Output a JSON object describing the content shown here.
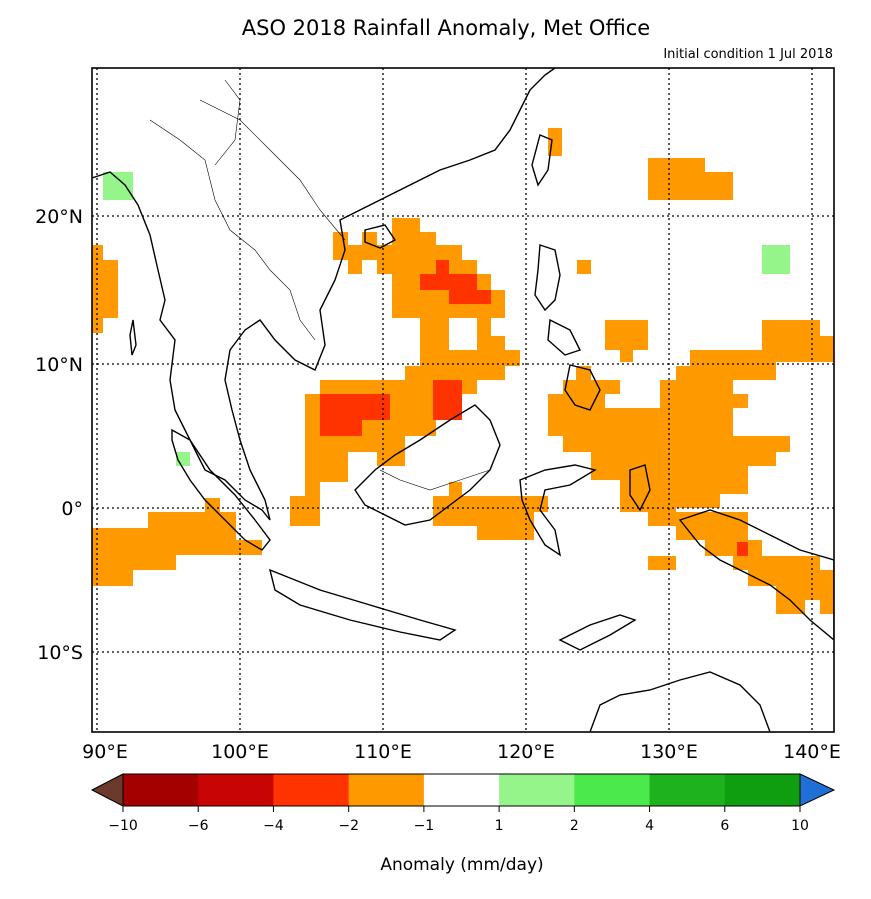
{
  "title": "ASO 2018 Rainfall Anomaly, Met Office",
  "subtitle": "Initial condition 1 Jul 2018",
  "lon_ticks": [
    {
      "lon": 90,
      "label": "90°E"
    },
    {
      "lon": 100,
      "label": "100°E"
    },
    {
      "lon": 110,
      "label": "110°E"
    },
    {
      "lon": 120,
      "label": "120°E"
    },
    {
      "lon": 130,
      "label": "130°E"
    },
    {
      "lon": 140,
      "label": "140°E"
    }
  ],
  "lat_ticks": [
    {
      "lat": 20,
      "label": "20°N"
    },
    {
      "lat": 10,
      "label": "10°N"
    },
    {
      "lat": 0,
      "label": "0°"
    },
    {
      "lat": -10,
      "label": "10°S"
    }
  ],
  "extent": {
    "lon_min": 89.7,
    "lon_max": 141.5,
    "lat_min": -15.5,
    "lat_max": 30.2
  },
  "colorbar": {
    "label": "Anomaly (mm/day)",
    "tick_labels": [
      "−10",
      "−6",
      "−4",
      "−2",
      "−1",
      "1",
      "2",
      "4",
      "6",
      "10"
    ],
    "bins": [
      {
        "range": "-10 to -6",
        "color": "#a50000"
      },
      {
        "range": "-6 to -4",
        "color": "#c80404"
      },
      {
        "range": "-4 to -2",
        "color": "#ff3300"
      },
      {
        "range": "-2 to -1",
        "color": "#ff9900"
      },
      {
        "range": "-1 to 1",
        "color": "#ffffff"
      },
      {
        "range": "1 to 2",
        "color": "#96f58a"
      },
      {
        "range": "2 to 4",
        "color": "#4be94b"
      },
      {
        "range": "4 to 6",
        "color": "#1eb31e"
      },
      {
        "range": "6 to 10",
        "color": "#0f9e0f"
      }
    ],
    "under_color": "#6b3a2a",
    "over_color": "#1f6fd6"
  },
  "anomaly_regions": [
    {
      "class": "-2 to -1",
      "color": "#ff9900",
      "lons": [
        90,
        93.5,
        93.5,
        92,
        92,
        90
      ],
      "lats": [
        18,
        18,
        12,
        12,
        12,
        12
      ]
    }
  ]
}
